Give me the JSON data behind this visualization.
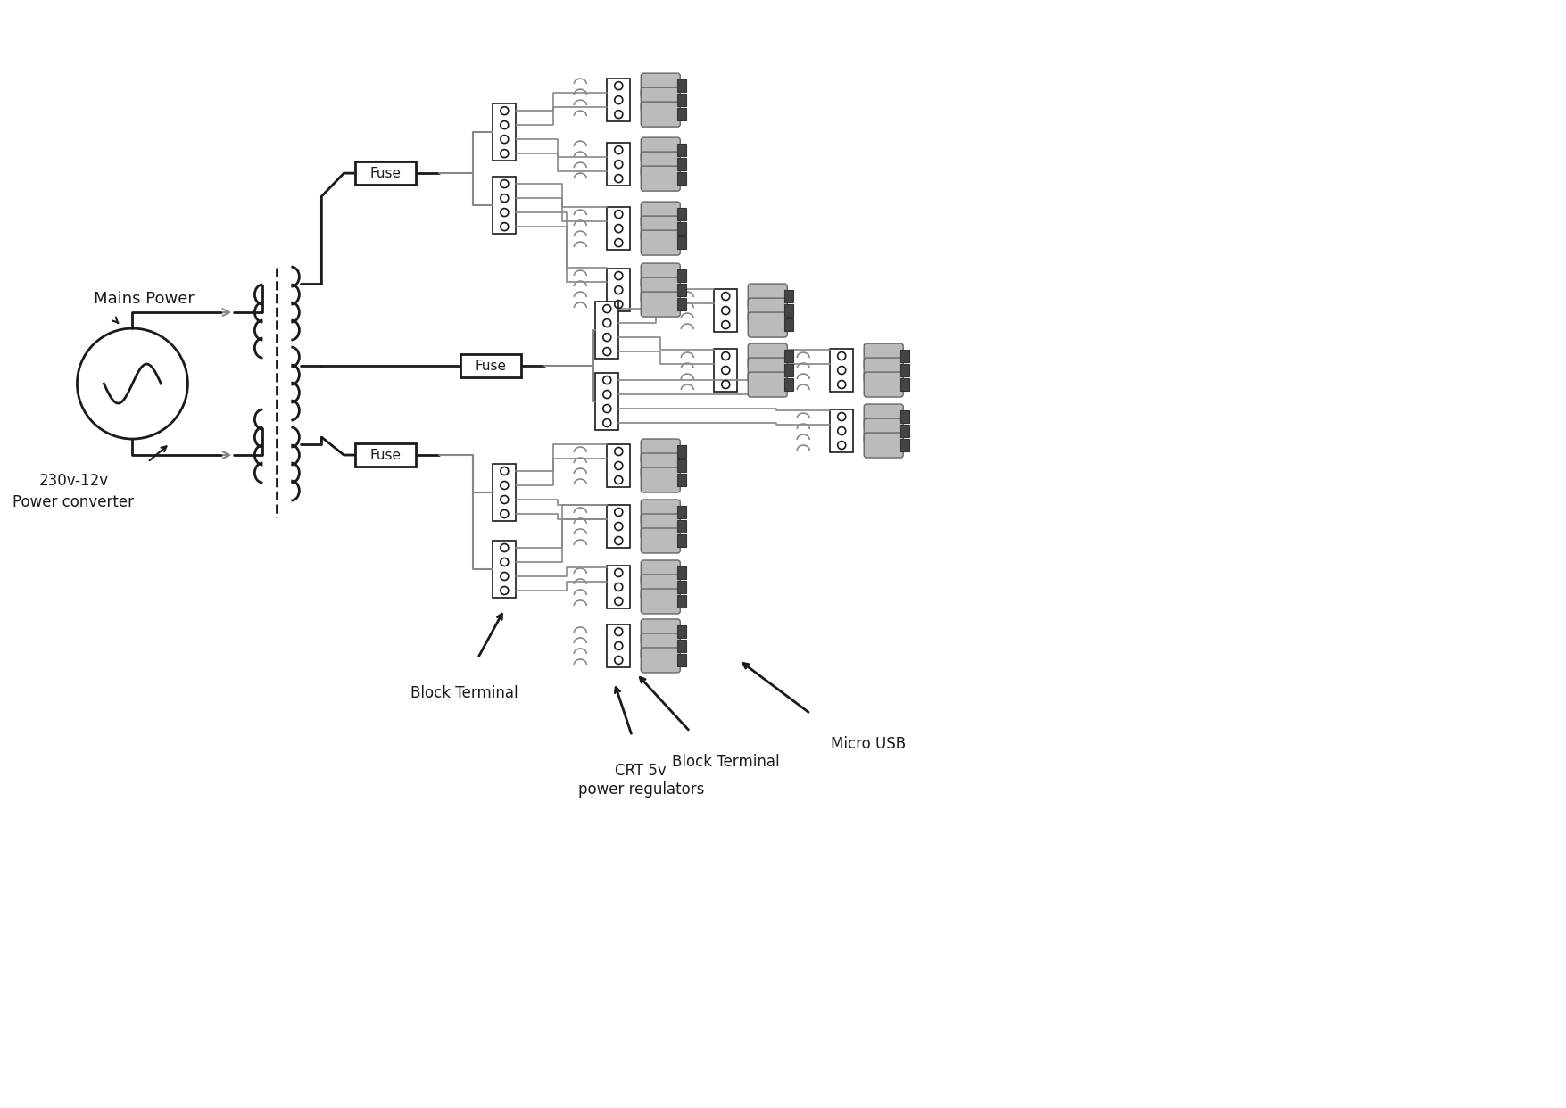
{
  "bg_color": "#ffffff",
  "line_color": "#888888",
  "dark_line_color": "#1a1a1a",
  "text_color": "#1a1a1a",
  "figsize": [
    17.55,
    12.42
  ],
  "dpi": 100,
  "labels": {
    "mains_power": "Mains Power",
    "power_converter": "230v-12v\nPower converter",
    "block_terminal": "Block Terminal",
    "crt_regulator": "CRT 5v\npower regulators",
    "micro_usb": "Micro USB",
    "fuse": "Fuse"
  }
}
